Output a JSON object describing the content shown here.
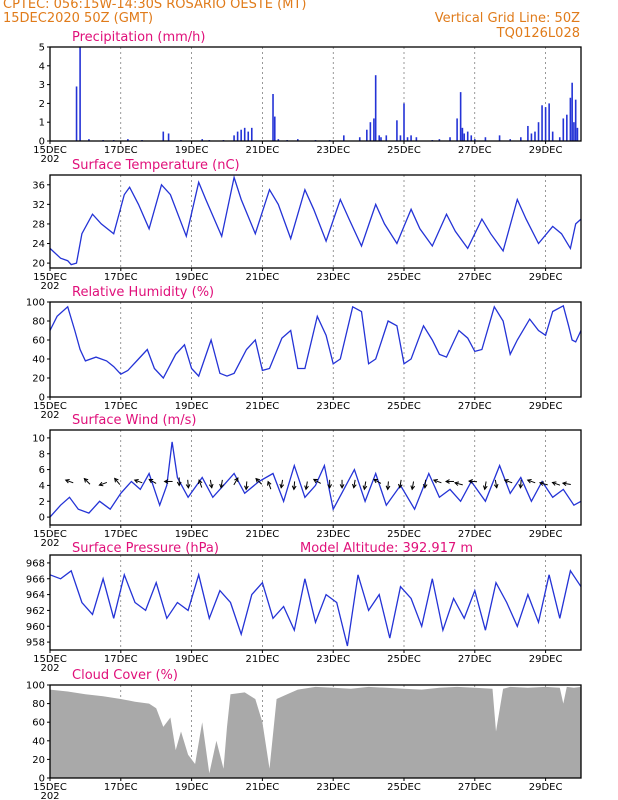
{
  "header": {
    "left_line1": "CPTEC:   056:15W-14:30S   ROSARIO OESTE (MT)",
    "left_line2": "15DEC2020 50Z (GMT)",
    "right_line1": "Vertical Grid Line: 50Z",
    "right_line2": "TQ0126L028"
  },
  "colors": {
    "header": "#e07b1a",
    "panel_title": "#e0107a",
    "series": "#2433d6",
    "cloud": "#a9a9a9"
  },
  "x_axis": {
    "tick_labels": [
      "15DEC",
      "17DEC",
      "19DEC",
      "21DEC",
      "23DEC",
      "25DEC",
      "27DEC",
      "29DEC"
    ],
    "tick_days": [
      15,
      17,
      19,
      21,
      23,
      25,
      27,
      29
    ],
    "sub_label": "202",
    "range_days": [
      15,
      30
    ]
  },
  "chart_data": [
    {
      "type": "bar",
      "title": "Precipitation (mm/h)",
      "ylim": [
        0,
        5
      ],
      "yticks": [
        0,
        1,
        2,
        3,
        4,
        5
      ],
      "x": [
        15.75,
        15.85,
        16.1,
        16.5,
        16.8,
        17.2,
        17.6,
        18.2,
        18.35,
        18.7,
        19.3,
        19.5,
        19.9,
        20.2,
        20.3,
        20.4,
        20.5,
        20.6,
        20.7,
        21.3,
        21.35,
        21.45,
        21.7,
        22.0,
        22.5,
        22.9,
        23.3,
        23.75,
        23.95,
        24.05,
        24.15,
        24.2,
        24.3,
        24.35,
        24.5,
        24.8,
        24.9,
        25.0,
        25.1,
        25.2,
        25.35,
        25.8,
        26.0,
        26.3,
        26.5,
        26.6,
        26.65,
        26.7,
        26.8,
        26.9,
        27.0,
        27.3,
        27.7,
        28.0,
        28.3,
        28.5,
        28.6,
        28.7,
        28.8,
        28.9,
        29.0,
        29.1,
        29.2,
        29.4,
        29.5,
        29.6,
        29.7,
        29.75,
        29.8,
        29.85,
        29.9
      ],
      "values": [
        2.9,
        5.0,
        0.1,
        0.05,
        0.05,
        0.1,
        0.05,
        0.5,
        0.4,
        0.05,
        0.1,
        0.05,
        0.05,
        0.3,
        0.5,
        0.6,
        0.7,
        0.5,
        0.7,
        2.5,
        1.3,
        0.1,
        0.05,
        0.1,
        0.05,
        0.05,
        0.3,
        0.2,
        0.6,
        1.0,
        1.2,
        3.5,
        0.3,
        0.2,
        0.3,
        1.1,
        0.3,
        2.0,
        0.2,
        0.3,
        0.2,
        0.05,
        0.1,
        0.2,
        1.2,
        2.6,
        0.7,
        0.4,
        0.5,
        0.3,
        0.1,
        0.2,
        0.3,
        0.1,
        0.2,
        0.8,
        0.4,
        0.5,
        1.0,
        1.9,
        1.8,
        2.0,
        0.5,
        0.2,
        1.2,
        1.4,
        2.3,
        3.1,
        1.0,
        2.2,
        0.7
      ]
    },
    {
      "type": "line",
      "title": "Surface Temperature (nC)",
      "ylim": [
        19,
        38
      ],
      "yticks": [
        20,
        24,
        28,
        32,
        36
      ],
      "x": [
        15.0,
        15.3,
        15.5,
        15.6,
        15.75,
        15.9,
        16.2,
        16.45,
        16.8,
        17.1,
        17.25,
        17.5,
        17.8,
        18.15,
        18.4,
        18.85,
        19.2,
        19.4,
        19.85,
        20.2,
        20.4,
        20.8,
        21.2,
        21.45,
        21.8,
        22.2,
        22.45,
        22.8,
        23.2,
        23.45,
        23.8,
        24.2,
        24.45,
        24.8,
        25.2,
        25.45,
        25.8,
        26.2,
        26.45,
        26.8,
        27.2,
        27.45,
        27.8,
        28.2,
        28.45,
        28.8,
        29.2,
        29.45,
        29.7,
        29.85,
        30.0
      ],
      "values": [
        23,
        21,
        20.5,
        19.7,
        20,
        26,
        30,
        28,
        26,
        34,
        35.5,
        32,
        27,
        36,
        34,
        25.5,
        36.5,
        33,
        25.5,
        37.5,
        33,
        26,
        35,
        32,
        25,
        35,
        31,
        24.5,
        33,
        29,
        23.5,
        32,
        28,
        24,
        31,
        27,
        23.5,
        30,
        26.5,
        23,
        29,
        26,
        22.5,
        33,
        29,
        24,
        27.5,
        26,
        23,
        28,
        29
      ]
    },
    {
      "type": "line",
      "title": "Relative Humidity (%)",
      "ylim": [
        0,
        100
      ],
      "yticks": [
        0,
        20,
        40,
        60,
        80,
        100
      ],
      "x": [
        15.0,
        15.2,
        15.5,
        15.7,
        15.85,
        16.0,
        16.3,
        16.6,
        16.8,
        17.0,
        17.2,
        17.5,
        17.75,
        17.95,
        18.2,
        18.55,
        18.8,
        19.0,
        19.2,
        19.55,
        19.8,
        20.0,
        20.2,
        20.55,
        20.8,
        21.0,
        21.2,
        21.55,
        21.8,
        22.0,
        22.2,
        22.55,
        22.8,
        23.0,
        23.2,
        23.55,
        23.8,
        24.0,
        24.2,
        24.55,
        24.8,
        25.0,
        25.2,
        25.55,
        25.8,
        26.0,
        26.2,
        26.55,
        26.8,
        27.0,
        27.2,
        27.55,
        27.8,
        28.0,
        28.2,
        28.55,
        28.8,
        29.0,
        29.2,
        29.5,
        29.65,
        29.75,
        29.85,
        30.0
      ],
      "values": [
        70,
        85,
        95,
        70,
        50,
        38,
        42,
        38,
        32,
        24,
        28,
        40,
        50,
        30,
        20,
        45,
        55,
        30,
        22,
        60,
        25,
        22,
        25,
        50,
        60,
        28,
        30,
        62,
        70,
        30,
        30,
        85,
        65,
        35,
        40,
        95,
        90,
        35,
        40,
        80,
        75,
        35,
        40,
        75,
        60,
        45,
        42,
        70,
        62,
        48,
        50,
        95,
        80,
        45,
        60,
        82,
        70,
        65,
        90,
        96,
        75,
        60,
        58,
        70
      ]
    },
    {
      "type": "line",
      "title": "Surface Wind (m/s)",
      "ylim": [
        -1,
        11
      ],
      "yticks": [
        0,
        2,
        4,
        6,
        8,
        10
      ],
      "x": [
        15.0,
        15.3,
        15.55,
        15.8,
        16.1,
        16.4,
        16.7,
        17.0,
        17.3,
        17.55,
        17.8,
        18.1,
        18.3,
        18.45,
        18.6,
        18.9,
        19.3,
        19.6,
        19.9,
        20.2,
        20.5,
        20.9,
        21.3,
        21.6,
        21.9,
        22.2,
        22.5,
        22.75,
        23.0,
        23.3,
        23.6,
        23.9,
        24.2,
        24.5,
        24.9,
        25.3,
        25.7,
        26.0,
        26.3,
        26.6,
        26.9,
        27.3,
        27.7,
        28.0,
        28.3,
        28.6,
        28.9,
        29.2,
        29.5,
        29.8,
        30.0
      ],
      "values": [
        0,
        1.5,
        2.5,
        1,
        0.5,
        2,
        1,
        3,
        4.5,
        3.5,
        5.5,
        1.5,
        4,
        9.5,
        5,
        2.5,
        5,
        2.5,
        4,
        5.5,
        3,
        4.5,
        5.5,
        2,
        6.5,
        2.5,
        4,
        6.5,
        1,
        3.5,
        6,
        2,
        5.5,
        1.5,
        4,
        1,
        5.5,
        2.5,
        3.5,
        2,
        4.5,
        2,
        6.5,
        3,
        5,
        2,
        4.5,
        2.5,
        3.5,
        1.5,
        2
      ]
    },
    {
      "type": "line",
      "title": "Surface Pressure (hPa)",
      "annotation": "Model Altitude: 392.917  m",
      "ylim": [
        957,
        969
      ],
      "yticks": [
        958,
        960,
        962,
        964,
        966,
        968
      ],
      "x": [
        15.0,
        15.3,
        15.6,
        15.9,
        16.2,
        16.5,
        16.8,
        17.1,
        17.4,
        17.7,
        18.0,
        18.3,
        18.6,
        18.9,
        19.2,
        19.5,
        19.8,
        20.1,
        20.4,
        20.7,
        21.0,
        21.3,
        21.6,
        21.9,
        22.2,
        22.5,
        22.8,
        23.1,
        23.4,
        23.7,
        24.0,
        24.3,
        24.6,
        24.9,
        25.2,
        25.5,
        25.8,
        26.1,
        26.4,
        26.7,
        27.0,
        27.3,
        27.6,
        27.9,
        28.2,
        28.5,
        28.8,
        29.1,
        29.4,
        29.7,
        30.0
      ],
      "values": [
        966.5,
        966,
        967,
        963,
        961.5,
        966,
        961,
        966.5,
        963,
        962,
        965.5,
        961,
        963,
        962,
        966.5,
        961,
        964.5,
        963,
        959,
        964,
        965.5,
        961,
        962.5,
        959.5,
        966,
        960.5,
        964,
        963,
        957.5,
        966.5,
        962,
        964,
        958.5,
        965,
        963.5,
        960,
        966,
        959.5,
        963.5,
        961,
        964.5,
        959.5,
        965.5,
        963,
        960,
        964,
        960.5,
        966.5,
        961,
        967,
        965
      ]
    },
    {
      "type": "area",
      "title": "Cloud Cover (%)",
      "ylim": [
        0,
        100
      ],
      "yticks": [
        0,
        20,
        40,
        60,
        80,
        100
      ],
      "x": [
        15.0,
        15.5,
        16.0,
        16.5,
        17.0,
        17.4,
        17.8,
        18.0,
        18.2,
        18.4,
        18.55,
        18.7,
        18.9,
        19.1,
        19.3,
        19.5,
        19.7,
        19.9,
        20.0,
        20.1,
        20.5,
        20.8,
        21.0,
        21.2,
        21.4,
        21.7,
        22.0,
        22.5,
        23.0,
        23.5,
        24.0,
        24.5,
        25.0,
        25.5,
        26.0,
        26.5,
        27.0,
        27.5,
        27.6,
        27.8,
        28.0,
        28.5,
        29.0,
        29.4,
        29.5,
        29.6,
        29.8,
        30.0
      ],
      "values": [
        95,
        93,
        90,
        88,
        85,
        82,
        80,
        75,
        55,
        65,
        30,
        50,
        25,
        15,
        60,
        5,
        40,
        10,
        55,
        90,
        92,
        85,
        60,
        10,
        85,
        90,
        95,
        98,
        97,
        96,
        98,
        97,
        96,
        95,
        97,
        98,
        97,
        96,
        50,
        96,
        98,
        97,
        98,
        97,
        80,
        98,
        97,
        98
      ]
    }
  ],
  "wind_vectors": {
    "days": [
      15.55,
      16.05,
      16.5,
      16.9,
      17.5,
      17.9,
      18.35,
      18.65,
      18.9,
      19.25,
      19.55,
      19.85,
      20.25,
      20.55,
      20.9,
      21.2,
      21.55,
      21.9,
      22.25,
      22.55,
      22.9,
      23.25,
      23.6,
      23.9,
      24.25,
      24.55,
      24.9,
      25.25,
      25.6,
      25.95,
      26.3,
      26.55,
      26.95,
      27.3,
      27.6,
      27.95,
      28.3,
      28.6,
      28.95,
      29.3,
      29.6
    ],
    "angles_deg": [
      200,
      225,
      160,
      230,
      200,
      210,
      180,
      90,
      85,
      250,
      80,
      100,
      300,
      95,
      225,
      250,
      100,
      95,
      100,
      210,
      90,
      90,
      100,
      100,
      210,
      95,
      100,
      100,
      95,
      200,
      180,
      195,
      185,
      100,
      80,
      200,
      95,
      200,
      195,
      200,
      190
    ],
    "speeds": [
      4.5,
      4.5,
      4.2,
      4.5,
      4.5,
      4.5,
      4.5,
      4.5,
      4.2,
      4.2,
      4.2,
      4.2,
      4.5,
      4.0,
      4.5,
      4.0,
      4.2,
      4.0,
      4.0,
      4.5,
      4.2,
      4.2,
      4.2,
      4.0,
      4.5,
      4.0,
      4.2,
      4.0,
      4.2,
      4.5,
      4.5,
      4.2,
      4.5,
      4.0,
      4.2,
      4.5,
      4.2,
      4.5,
      4.2,
      4.2,
      4.2
    ]
  }
}
